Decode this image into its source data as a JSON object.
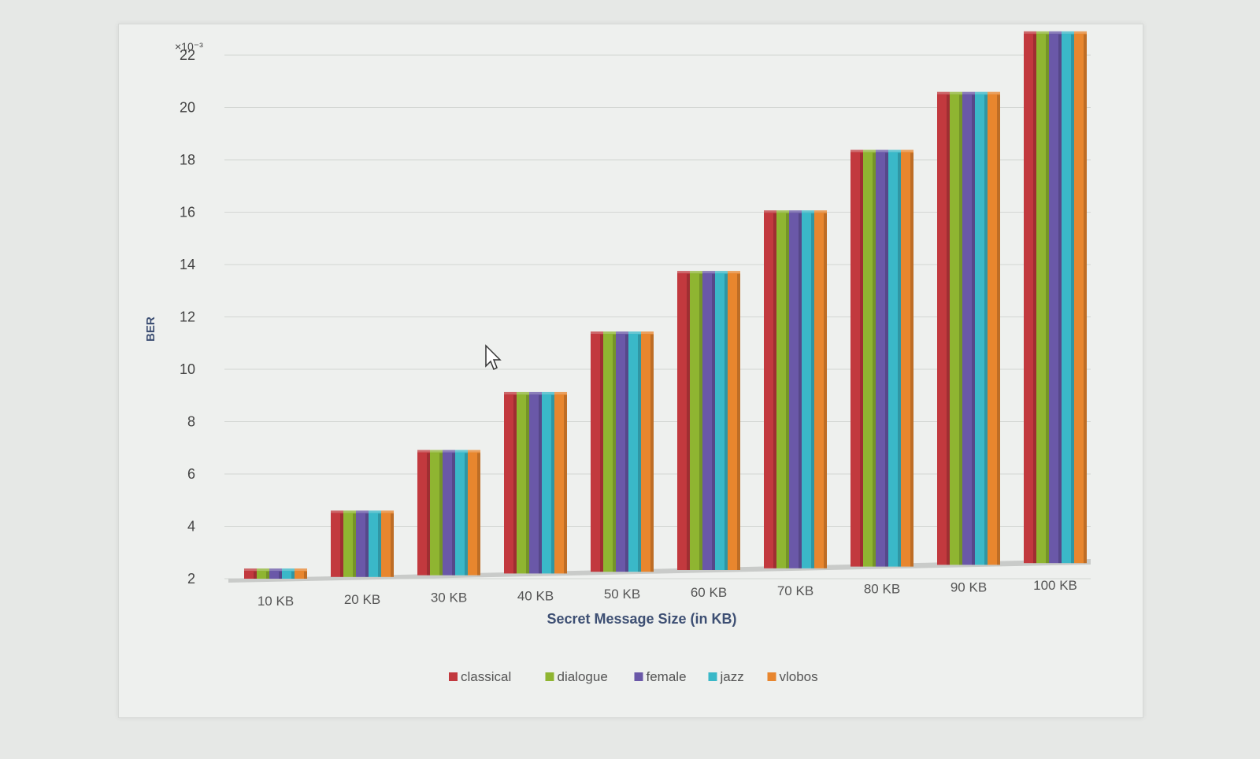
{
  "chart_data": {
    "type": "bar",
    "title": "",
    "xlabel": "Secret Message Size (in KB)",
    "ylabel": "BER",
    "y_multiplier": "×10⁻³",
    "categories": [
      "10 KB",
      "20 KB",
      "30 KB",
      "40 KB",
      "50 KB",
      "60 KB",
      "70 KB",
      "80 KB",
      "90 KB",
      "100 KB"
    ],
    "y_ticks": [
      "2",
      "4",
      "6",
      "8",
      "10",
      "12",
      "14",
      "16",
      "18",
      "20",
      "22"
    ],
    "ylim": [
      2,
      22
    ],
    "grid": true,
    "legend_position": "bottom",
    "series": [
      {
        "name": "classical",
        "color": "#c2393e",
        "values": [
          2.3,
          4.5,
          6.8,
          9.0,
          11.3,
          13.6,
          15.9,
          18.2,
          20.4,
          22.7
        ]
      },
      {
        "name": "dialogue",
        "color": "#8fb531",
        "values": [
          2.3,
          4.5,
          6.8,
          9.0,
          11.3,
          13.6,
          15.9,
          18.2,
          20.4,
          22.7
        ]
      },
      {
        "name": "female",
        "color": "#6a58a8",
        "values": [
          2.3,
          4.5,
          6.8,
          9.0,
          11.3,
          13.6,
          15.9,
          18.2,
          20.4,
          22.7
        ]
      },
      {
        "name": "jazz",
        "color": "#3ab8c8",
        "values": [
          2.3,
          4.5,
          6.8,
          9.0,
          11.3,
          13.6,
          15.9,
          18.2,
          20.4,
          22.7
        ]
      },
      {
        "name": "vlobos",
        "color": "#e8862e",
        "values": [
          2.3,
          4.5,
          6.8,
          9.0,
          11.3,
          13.6,
          15.9,
          18.2,
          20.4,
          22.7
        ]
      }
    ]
  }
}
